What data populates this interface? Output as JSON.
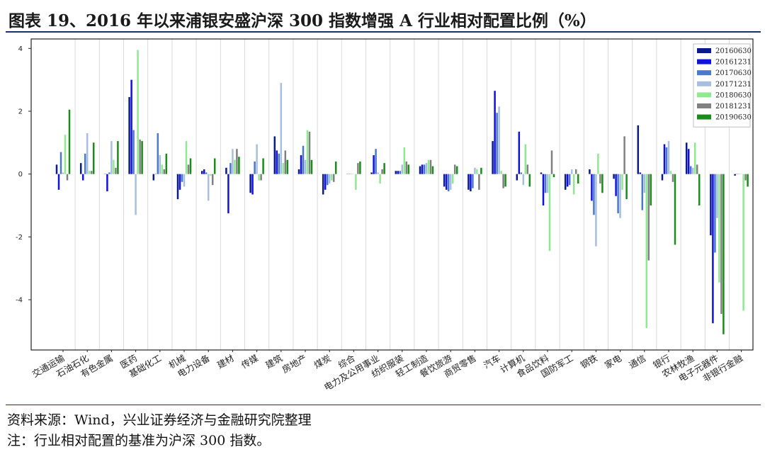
{
  "header": {
    "title": "图表 19、2016 年以来浦银安盛沪深 300 指数增强 A 行业相对配置比例（%）"
  },
  "footer": {
    "source": "资料来源：Wind，兴业证券经济与金融研究院整理",
    "note": "注：行业相对配置的基准为沪深 300 指数。"
  },
  "chart_data": {
    "type": "bar",
    "ylim": [
      -5.6,
      4.3
    ],
    "yticks": [
      -4,
      -2,
      0,
      2,
      4
    ],
    "grid": "vertical",
    "legend_position": "top-right",
    "categories": [
      "交通运输",
      "石油石化",
      "有色金属",
      "医药",
      "基础化工",
      "机械",
      "电力设备",
      "建材",
      "传媒",
      "建筑",
      "房地产",
      "煤炭",
      "综合",
      "电力及公用事业",
      "纺织服装",
      "轻工制造",
      "餐饮旅游",
      "商贸零售",
      "汽车",
      "计算机",
      "食品饮料",
      "国防军工",
      "钢铁",
      "家电",
      "通信",
      "银行",
      "农林牧渔",
      "电子元器件",
      "非银行金融"
    ],
    "series": [
      {
        "name": "20160630",
        "color": "#0b1a8a",
        "values": [
          0.3,
          0.35,
          0,
          2.45,
          -0.2,
          -0.8,
          0.1,
          0.2,
          -0.6,
          1.2,
          0.15,
          -0.65,
          0,
          0.05,
          0.1,
          0.25,
          -0.4,
          -0.5,
          1.05,
          -0.2,
          0.05,
          -0.5,
          0.15,
          -0.15,
          1.55,
          -0.2,
          1.0,
          -1.95,
          -0.05
        ]
      },
      {
        "name": "20161231",
        "color": "#1010e0",
        "values": [
          -0.5,
          -0.2,
          -0.55,
          3.0,
          0,
          -0.5,
          0.15,
          -1.25,
          -0.65,
          0.75,
          0.6,
          -0.5,
          0,
          0.6,
          0.1,
          0.3,
          -0.5,
          -0.55,
          2.65,
          1.35,
          -1.0,
          -0.4,
          -0.85,
          -0.7,
          0.05,
          0.95,
          0.8,
          -4.75,
          0
        ]
      },
      {
        "name": "20170630",
        "color": "#4a78cc",
        "values": [
          0.7,
          0.65,
          0.05,
          1.4,
          1.3,
          -0.25,
          0.05,
          0.35,
          0.4,
          0.65,
          0.9,
          -0.35,
          0,
          0.8,
          0.1,
          0.3,
          -0.55,
          -0.45,
          1.95,
          0.05,
          -0.6,
          -0.35,
          -1.3,
          -1.25,
          -1.15,
          0.85,
          0.25,
          -2.5,
          0
        ]
      },
      {
        "name": "20171231",
        "color": "#a8bedf",
        "values": [
          0.05,
          1.3,
          1.05,
          -1.3,
          0.6,
          -0.4,
          -0.85,
          0.8,
          0.95,
          2.9,
          0.45,
          -0.3,
          0,
          0.05,
          0.3,
          0.35,
          -0.5,
          0.2,
          2.15,
          -0.35,
          -0.6,
          0.15,
          -2.3,
          -1.4,
          -0.6,
          1.05,
          0.2,
          -1.4,
          0
        ]
      },
      {
        "name": "20180630",
        "color": "#90e890",
        "values": [
          1.25,
          0.1,
          0.45,
          3.95,
          0.3,
          1.05,
          -0.05,
          0.45,
          -0.2,
          0.35,
          1.4,
          -0.2,
          -0.5,
          -0.3,
          0.85,
          0.45,
          -0.3,
          0.15,
          0.1,
          0.95,
          -2.45,
          -0.65,
          0.65,
          -0.5,
          -4.9,
          0.1,
          1.0,
          -3.45,
          -4.35
        ]
      },
      {
        "name": "20181231",
        "color": "#808080",
        "values": [
          -0.2,
          0.1,
          0.2,
          1.1,
          0.15,
          0.3,
          -0.35,
          0.8,
          -0.2,
          0.75,
          1.35,
          -0.25,
          0.35,
          0.15,
          0.4,
          0.45,
          0.3,
          -0.5,
          -0.45,
          0.3,
          0.75,
          0.15,
          -0.3,
          1.2,
          -2.75,
          -0.25,
          0.3,
          -4.45,
          -0.2
        ]
      },
      {
        "name": "20190630",
        "color": "#1a8c1a",
        "values": [
          2.05,
          1.0,
          1.05,
          1.05,
          0.65,
          0.5,
          0.5,
          0.55,
          0.5,
          0.45,
          0.45,
          0.4,
          0.4,
          0.35,
          0.3,
          0.25,
          0.25,
          0.2,
          -0.4,
          -0.4,
          -0.1,
          -0.3,
          -0.6,
          -0.8,
          -1.0,
          -2.25,
          -1.0,
          -5.1,
          -0.4
        ]
      }
    ]
  }
}
